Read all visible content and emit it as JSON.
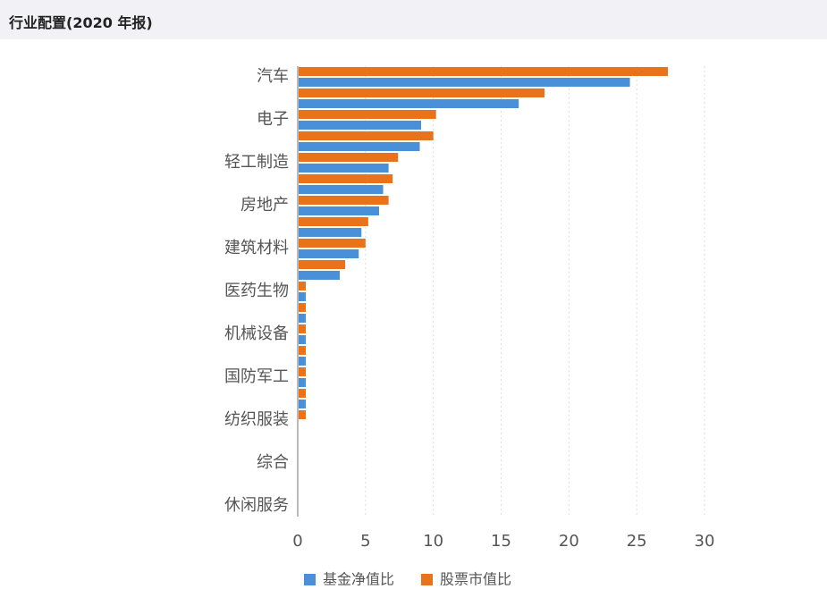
{
  "header": {
    "title": "行业配置(2020 年报)"
  },
  "chart_data": {
    "type": "hbar",
    "categories": [
      "汽车",
      null,
      "电子",
      null,
      "轻工制造",
      null,
      "房地产",
      null,
      "建筑材料",
      null,
      "医药生物",
      null,
      "机械设备",
      null,
      "国防军工",
      null,
      "纺织服装",
      null,
      "综合",
      null,
      "休闲服务"
    ],
    "series": [
      {
        "name": "基金净值比",
        "color": "#4a90d9",
        "values": [
          24.5,
          16.3,
          9.1,
          9.0,
          6.7,
          6.3,
          6.0,
          4.7,
          4.5,
          3.1,
          0.6,
          0.6,
          0.6,
          0.6,
          0.6,
          0.6,
          0,
          0,
          0,
          0,
          0
        ]
      },
      {
        "name": "股票市值比",
        "color": "#e8731a",
        "values": [
          27.3,
          18.2,
          10.2,
          10.0,
          7.4,
          7.0,
          6.7,
          5.2,
          5.0,
          3.5,
          0.6,
          0.6,
          0.6,
          0.6,
          0.6,
          0.6,
          0.6,
          0,
          0,
          0,
          0
        ]
      }
    ],
    "xlim": [
      0,
      30
    ],
    "xticks": [
      0,
      5,
      10,
      15,
      20,
      25,
      30
    ],
    "grid": true,
    "legend": "bottom"
  }
}
